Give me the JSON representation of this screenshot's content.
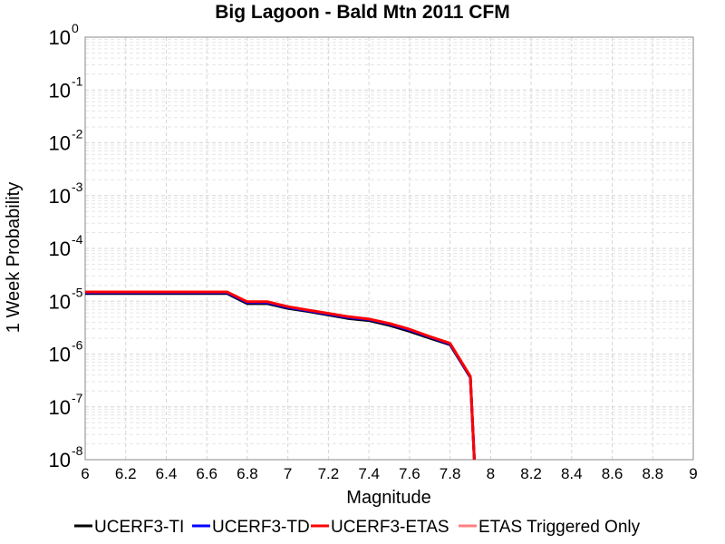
{
  "chart_data": {
    "type": "line",
    "title": "Big Lagoon - Bald Mtn 2011 CFM",
    "xlabel": "Magnitude",
    "ylabel": "1 Week Probability",
    "xlim": [
      6,
      9
    ],
    "ylim": [
      1e-08,
      1
    ],
    "yscale": "log",
    "grid": true,
    "legend_position": "bottom",
    "x_ticks": [
      "6",
      "6.2",
      "6.4",
      "6.6",
      "6.8",
      "7",
      "7.2",
      "7.4",
      "7.6",
      "7.8",
      "8",
      "8.2",
      "8.4",
      "8.6",
      "8.8",
      "9"
    ],
    "y_ticks": [
      {
        "base": "10",
        "exp": "0"
      },
      {
        "base": "10",
        "exp": "-1"
      },
      {
        "base": "10",
        "exp": "-2"
      },
      {
        "base": "10",
        "exp": "-3"
      },
      {
        "base": "10",
        "exp": "-4"
      },
      {
        "base": "10",
        "exp": "-5"
      },
      {
        "base": "10",
        "exp": "-6"
      },
      {
        "base": "10",
        "exp": "-7"
      },
      {
        "base": "10",
        "exp": "-8"
      }
    ],
    "series": [
      {
        "name": "UCERF3-TI",
        "color": "#000000",
        "x": [
          6.0,
          6.7,
          6.8,
          6.9,
          7.0,
          7.1,
          7.2,
          7.3,
          7.4,
          7.5,
          7.6,
          7.7,
          7.8,
          7.9,
          7.92
        ],
        "y": [
          1.4e-05,
          1.4e-05,
          9e-06,
          9e-06,
          7.3e-06,
          6.4e-06,
          5.5e-06,
          4.7e-06,
          4.3e-06,
          3.5e-06,
          2.7e-06,
          2e-06,
          1.5e-06,
          3.6e-07,
          1e-08
        ]
      },
      {
        "name": "UCERF3-TD",
        "color": "#0000ff",
        "x": [
          6.0,
          6.7,
          6.8,
          6.9,
          7.0,
          7.1,
          7.2,
          7.3,
          7.4,
          7.5,
          7.6,
          7.7,
          7.8,
          7.9,
          7.92
        ],
        "y": [
          1.45e-05,
          1.45e-05,
          9.4e-06,
          9.4e-06,
          7.6e-06,
          6.6e-06,
          5.7e-06,
          4.9e-06,
          4.5e-06,
          3.7e-06,
          2.85e-06,
          2.1e-06,
          1.55e-06,
          3.7e-07,
          1e-08
        ]
      },
      {
        "name": "UCERF3-ETAS",
        "color": "#ff0000",
        "x": [
          6.0,
          6.7,
          6.8,
          6.9,
          7.0,
          7.1,
          7.2,
          7.3,
          7.4,
          7.5,
          7.6,
          7.7,
          7.8,
          7.9,
          7.92
        ],
        "y": [
          1.5e-05,
          1.5e-05,
          9.8e-06,
          9.8e-06,
          7.9e-06,
          6.8e-06,
          5.9e-06,
          5.1e-06,
          4.6e-06,
          3.8e-06,
          2.95e-06,
          2.15e-06,
          1.6e-06,
          3.8e-07,
          1e-08
        ]
      },
      {
        "name": "ETAS Triggered Only",
        "color": "#ff8080",
        "x": [],
        "y": []
      }
    ]
  }
}
